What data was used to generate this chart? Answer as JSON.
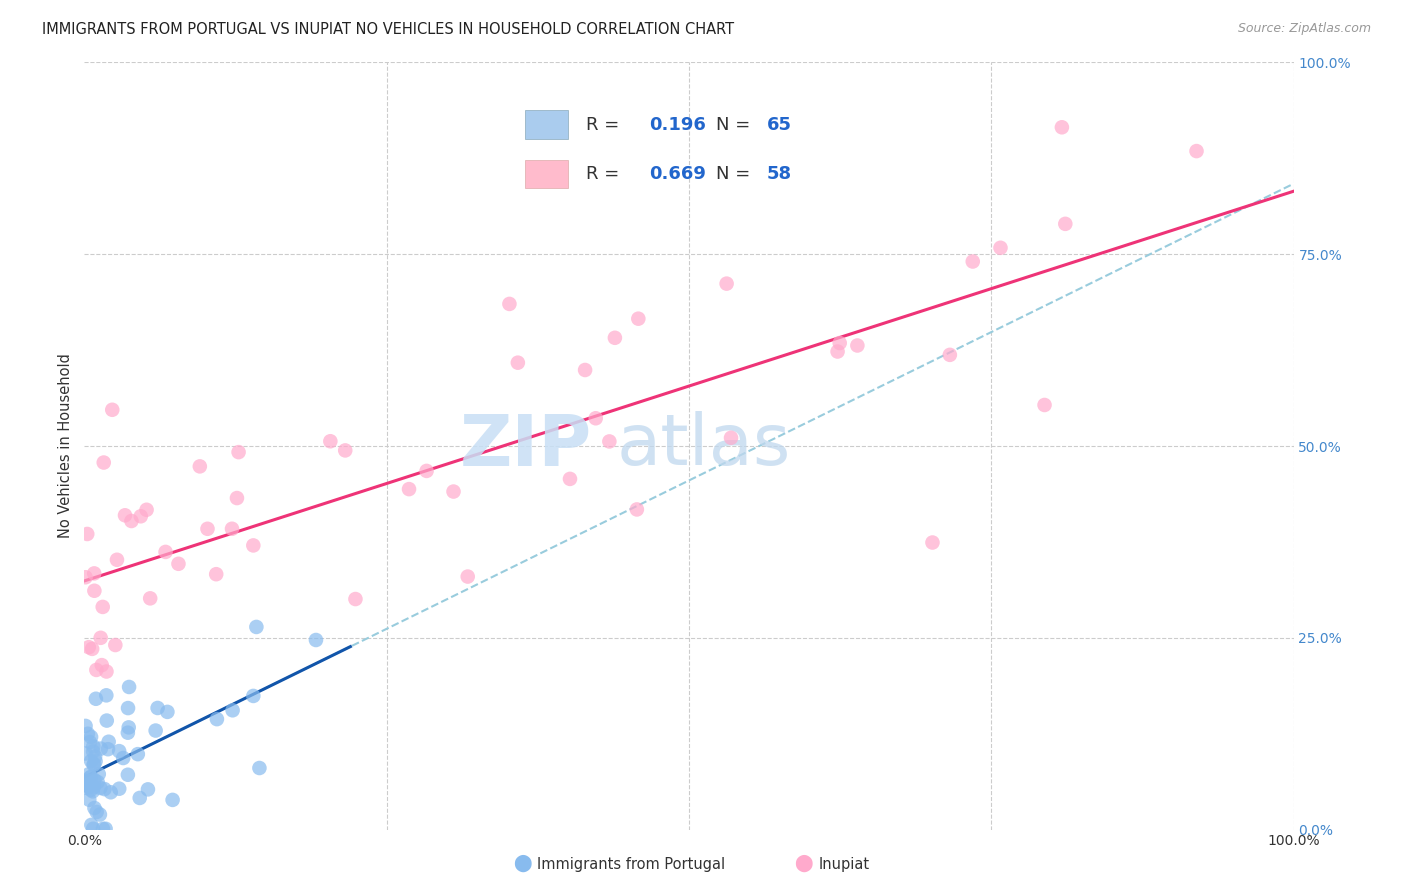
{
  "title": "IMMIGRANTS FROM PORTUGAL VS INUPIAT NO VEHICLES IN HOUSEHOLD CORRELATION CHART",
  "source": "Source: ZipAtlas.com",
  "ylabel": "No Vehicles in Household",
  "ytick_labels": [
    "0.0%",
    "25.0%",
    "50.0%",
    "75.0%",
    "100.0%"
  ],
  "ytick_values": [
    0.0,
    0.25,
    0.5,
    0.75,
    1.0
  ],
  "portugal_color": "#88bbee",
  "inupiat_color": "#ffaacc",
  "portugal_line_color": "#1155aa",
  "inupiat_line_color": "#ee3377",
  "portugal_dash_color": "#99ccdd",
  "background_color": "#ffffff",
  "grid_color": "#cccccc",
  "xlim": [
    0.0,
    1.0
  ],
  "ylim": [
    0.0,
    1.0
  ],
  "portugal_R": 0.196,
  "portugal_N": 65,
  "inupiat_R": 0.669,
  "inupiat_N": 58,
  "watermark_zip_color": "#c8dff5",
  "watermark_atlas_color": "#c0d8ee"
}
